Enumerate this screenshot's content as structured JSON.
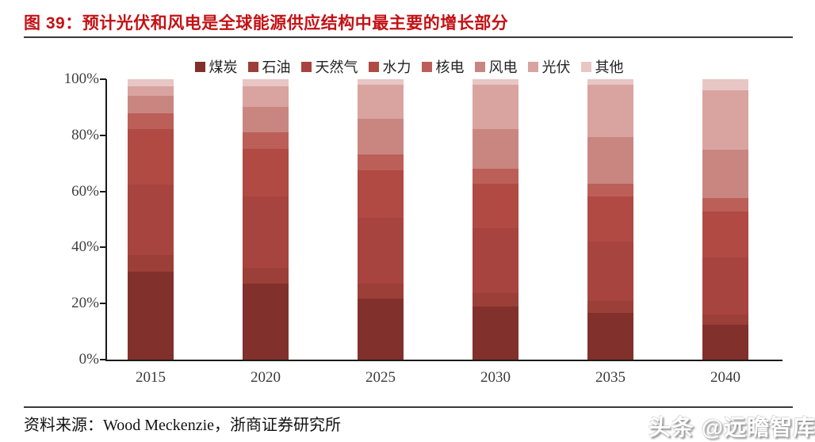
{
  "header": {
    "title": "图 39：预计光伏和风电是全球能源供应结构中最主要的增长部分"
  },
  "footer": {
    "source": "资料来源：Wood Meckenzie，浙商证券研究所",
    "watermark": "头条 @远瞻智库"
  },
  "chart_data": {
    "type": "bar",
    "variant": "stacked-100",
    "title": "预计光伏和风电是全球能源供应结构中最主要的增长部分",
    "xlabel": "",
    "ylabel": "",
    "unit": "%",
    "ylim": [
      0,
      100
    ],
    "grid": false,
    "legend_position": "top",
    "y_ticks": [
      "0%",
      "20%",
      "40%",
      "60%",
      "80%",
      "100%"
    ],
    "categories": [
      "2015",
      "2020",
      "2025",
      "2030",
      "2035",
      "2040"
    ],
    "series": [
      {
        "name": "煤炭",
        "color": "#82302c",
        "values": [
          31.4,
          27.0,
          21.8,
          19.0,
          16.7,
          12.4
        ]
      },
      {
        "name": "石油",
        "color": "#9c3f38",
        "values": [
          5.9,
          5.7,
          5.2,
          4.7,
          4.2,
          3.8
        ]
      },
      {
        "name": "天然气",
        "color": "#a84440",
        "values": [
          25.1,
          25.4,
          23.5,
          23.1,
          21.2,
          20.2
        ]
      },
      {
        "name": "水力",
        "color": "#b04a42",
        "values": [
          19.8,
          17.0,
          17.0,
          16.0,
          16.0,
          16.5
        ]
      },
      {
        "name": "核电",
        "color": "#bc5f58",
        "values": [
          5.7,
          6.1,
          5.6,
          5.2,
          4.7,
          4.7
        ]
      },
      {
        "name": "风电",
        "color": "#c98681",
        "values": [
          6.2,
          8.9,
          12.7,
          14.1,
          16.5,
          17.4
        ]
      },
      {
        "name": "光伏",
        "color": "#d9a3a0",
        "values": [
          3.5,
          7.5,
          12.2,
          16.0,
          18.8,
          21.2
        ]
      },
      {
        "name": "其他",
        "color": "#e8c6c4",
        "values": [
          2.4,
          2.4,
          2.0,
          1.9,
          1.9,
          3.8
        ]
      }
    ]
  }
}
